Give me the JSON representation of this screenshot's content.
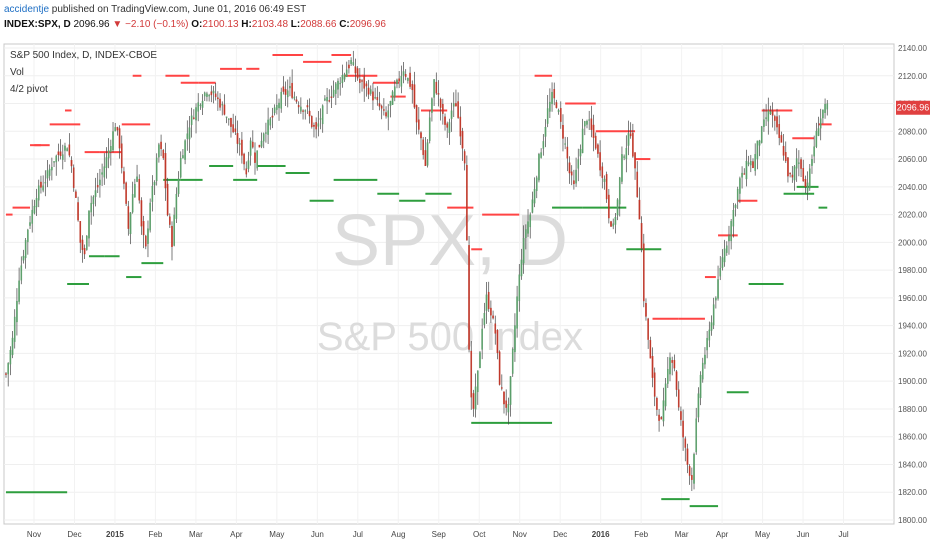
{
  "publish": {
    "author": "accidentje",
    "text": " published on TradingView.com, June 01, 2016 06:49 EST"
  },
  "ticker": {
    "symbol": "INDEX:SPX, D",
    "last": "2096.96",
    "change": "−2.10 (−0.1%)",
    "o_label": "O:",
    "o": "2100.13",
    "h_label": "H:",
    "h": "2103.48",
    "l_label": "L:",
    "l": "2088.66",
    "c_label": "C:",
    "c": "2096.96",
    "down_arrow": "▼"
  },
  "legend": {
    "title": "S&P 500 Index, D, INDEX-CBOE",
    "vol": "Vol",
    "pivot": "4/2 pivot"
  },
  "watermark": {
    "symbol": "SPX, D",
    "name": "S&P 500 Index"
  },
  "last_price_tag": "2096.96",
  "colors": {
    "up": "#5b9e6a",
    "down": "#c0392b",
    "wick": "#333333",
    "pivot_high": "#ff4444",
    "pivot_low": "#2e9e3e",
    "price_tag": "#e04040"
  },
  "chart_data": {
    "type": "candlestick",
    "y_axis": {
      "min": 1800,
      "max": 2140,
      "step": 20,
      "ticks": [
        "2140.00",
        "2120.00",
        "2100.00",
        "2080.00",
        "2060.00",
        "2040.00",
        "2020.00",
        "2000.00",
        "1980.00",
        "1960.00",
        "1940.00",
        "1920.00",
        "1900.00",
        "1880.00",
        "1860.00",
        "1840.00",
        "1820.00",
        "1800.00"
      ]
    },
    "x_axis": {
      "labels": [
        "Nov",
        "Dec",
        "2015",
        "Feb",
        "Mar",
        "Apr",
        "May",
        "Jun",
        "Jul",
        "Aug",
        "Sep",
        "Oct",
        "Nov",
        "Dec",
        "2016",
        "Feb",
        "Mar",
        "Apr",
        "May",
        "Jun",
        "Jul"
      ],
      "bold": [
        "2015",
        "2016"
      ]
    },
    "close_path": [
      [
        0,
        1905
      ],
      [
        3,
        1930
      ],
      [
        6,
        1975
      ],
      [
        10,
        2010
      ],
      [
        14,
        2035
      ],
      [
        18,
        2045
      ],
      [
        22,
        2060
      ],
      [
        25,
        2065
      ],
      [
        28,
        2070
      ],
      [
        30,
        2055
      ],
      [
        32,
        2030
      ],
      [
        34,
        2000
      ],
      [
        36,
        1990
      ],
      [
        38,
        2025
      ],
      [
        42,
        2040
      ],
      [
        46,
        2060
      ],
      [
        50,
        2085
      ],
      [
        52,
        2070
      ],
      [
        54,
        2040
      ],
      [
        56,
        2010
      ],
      [
        58,
        2035
      ],
      [
        60,
        2050
      ],
      [
        62,
        2010
      ],
      [
        64,
        1995
      ],
      [
        66,
        2030
      ],
      [
        68,
        2045
      ],
      [
        70,
        2070
      ],
      [
        72,
        2060
      ],
      [
        74,
        2020
      ],
      [
        76,
        2000
      ],
      [
        78,
        2035
      ],
      [
        80,
        2060
      ],
      [
        84,
        2085
      ],
      [
        88,
        2100
      ],
      [
        92,
        2110
      ],
      [
        96,
        2105
      ],
      [
        100,
        2095
      ],
      [
        104,
        2080
      ],
      [
        108,
        2065
      ],
      [
        110,
        2050
      ],
      [
        112,
        2075
      ],
      [
        114,
        2060
      ],
      [
        118,
        2080
      ],
      [
        122,
        2090
      ],
      [
        126,
        2105
      ],
      [
        130,
        2110
      ],
      [
        134,
        2100
      ],
      [
        138,
        2095
      ],
      [
        140,
        2085
      ],
      [
        142,
        2080
      ],
      [
        146,
        2100
      ],
      [
        150,
        2110
      ],
      [
        154,
        2120
      ],
      [
        158,
        2130
      ],
      [
        162,
        2115
      ],
      [
        166,
        2110
      ],
      [
        170,
        2100
      ],
      [
        174,
        2090
      ],
      [
        178,
        2110
      ],
      [
        182,
        2125
      ],
      [
        186,
        2110
      ],
      [
        188,
        2085
      ],
      [
        190,
        2075
      ],
      [
        192,
        2055
      ],
      [
        194,
        2090
      ],
      [
        196,
        2115
      ],
      [
        198,
        2105
      ],
      [
        200,
        2090
      ],
      [
        202,
        2080
      ],
      [
        204,
        2095
      ],
      [
        206,
        2100
      ],
      [
        208,
        2080
      ],
      [
        210,
        2060
      ],
      [
        211,
        2005
      ],
      [
        212,
        1920
      ],
      [
        213,
        1885
      ],
      [
        214,
        1880
      ],
      [
        216,
        1905
      ],
      [
        218,
        1940
      ],
      [
        220,
        1960
      ],
      [
        222,
        1950
      ],
      [
        224,
        1935
      ],
      [
        226,
        1900
      ],
      [
        228,
        1885
      ],
      [
        230,
        1880
      ],
      [
        232,
        1920
      ],
      [
        234,
        1960
      ],
      [
        236,
        1990
      ],
      [
        238,
        2010
      ],
      [
        240,
        2020
      ],
      [
        242,
        2040
      ],
      [
        244,
        2060
      ],
      [
        246,
        2075
      ],
      [
        248,
        2095
      ],
      [
        250,
        2105
      ],
      [
        252,
        2100
      ],
      [
        254,
        2085
      ],
      [
        256,
        2070
      ],
      [
        258,
        2050
      ],
      [
        260,
        2040
      ],
      [
        262,
        2060
      ],
      [
        264,
        2080
      ],
      [
        266,
        2090
      ],
      [
        268,
        2080
      ],
      [
        270,
        2070
      ],
      [
        272,
        2055
      ],
      [
        274,
        2045
      ],
      [
        276,
        2020
      ],
      [
        278,
        2010
      ],
      [
        280,
        2030
      ],
      [
        282,
        2060
      ],
      [
        284,
        2070
      ],
      [
        286,
        2080
      ],
      [
        288,
        2050
      ],
      [
        290,
        2020
      ],
      [
        291,
        1995
      ],
      [
        292,
        1960
      ],
      [
        294,
        1930
      ],
      [
        296,
        1900
      ],
      [
        298,
        1880
      ],
      [
        300,
        1870
      ],
      [
        302,
        1895
      ],
      [
        304,
        1920
      ],
      [
        306,
        1910
      ],
      [
        308,
        1880
      ],
      [
        310,
        1860
      ],
      [
        312,
        1840
      ],
      [
        314,
        1830
      ],
      [
        316,
        1870
      ],
      [
        318,
        1905
      ],
      [
        320,
        1920
      ],
      [
        322,
        1935
      ],
      [
        324,
        1955
      ],
      [
        326,
        1970
      ],
      [
        328,
        1990
      ],
      [
        330,
        2000
      ],
      [
        332,
        2015
      ],
      [
        334,
        2030
      ],
      [
        336,
        2045
      ],
      [
        338,
        2050
      ],
      [
        340,
        2060
      ],
      [
        342,
        2055
      ],
      [
        344,
        2070
      ],
      [
        346,
        2080
      ],
      [
        348,
        2090
      ],
      [
        350,
        2095
      ],
      [
        352,
        2085
      ],
      [
        354,
        2075
      ],
      [
        356,
        2065
      ],
      [
        358,
        2050
      ],
      [
        360,
        2045
      ],
      [
        362,
        2060
      ],
      [
        364,
        2055
      ],
      [
        366,
        2040
      ],
      [
        368,
        2050
      ],
      [
        370,
        2070
      ],
      [
        372,
        2085
      ],
      [
        374,
        2095
      ],
      [
        376,
        2097
      ]
    ],
    "pivots_high": [
      [
        0,
        3,
        2020
      ],
      [
        3,
        11,
        2025
      ],
      [
        11,
        16,
        2070
      ],
      [
        13,
        20,
        2070
      ],
      [
        20,
        34,
        2085
      ],
      [
        27,
        30,
        2095
      ],
      [
        36,
        43,
        2065
      ],
      [
        43,
        53,
        2065
      ],
      [
        53,
        66,
        2085
      ],
      [
        58,
        62,
        2120
      ],
      [
        73,
        84,
        2120
      ],
      [
        80,
        88,
        2115
      ],
      [
        88,
        96,
        2115
      ],
      [
        98,
        108,
        2125
      ],
      [
        110,
        116,
        2125
      ],
      [
        122,
        136,
        2135
      ],
      [
        136,
        149,
        2130
      ],
      [
        149,
        158,
        2135
      ],
      [
        155,
        164,
        2120
      ],
      [
        163,
        170,
        2120
      ],
      [
        168,
        180,
        2115
      ],
      [
        176,
        183,
        2105
      ],
      [
        190,
        202,
        2095
      ],
      [
        202,
        214,
        2025
      ],
      [
        218,
        235,
        2020
      ],
      [
        213,
        218,
        1995
      ],
      [
        242,
        250,
        2120
      ],
      [
        256,
        270,
        2100
      ],
      [
        270,
        288,
        2080
      ],
      [
        288,
        295,
        2060
      ],
      [
        296,
        308,
        1945
      ],
      [
        308,
        320,
        1945
      ],
      [
        320,
        325,
        1975
      ],
      [
        326,
        335,
        2005
      ],
      [
        335,
        344,
        2030
      ],
      [
        346,
        360,
        2095
      ],
      [
        360,
        370,
        2075
      ],
      [
        372,
        378,
        2085
      ]
    ],
    "pivots_low": [
      [
        0,
        28,
        1820
      ],
      [
        28,
        38,
        1970
      ],
      [
        38,
        45,
        1990
      ],
      [
        45,
        52,
        1990
      ],
      [
        55,
        62,
        1975
      ],
      [
        62,
        72,
        1985
      ],
      [
        72,
        80,
        2045
      ],
      [
        80,
        90,
        2045
      ],
      [
        93,
        104,
        2055
      ],
      [
        104,
        115,
        2045
      ],
      [
        115,
        128,
        2055
      ],
      [
        128,
        139,
        2050
      ],
      [
        139,
        150,
        2030
      ],
      [
        150,
        160,
        2045
      ],
      [
        160,
        170,
        2045
      ],
      [
        170,
        180,
        2035
      ],
      [
        180,
        192,
        2030
      ],
      [
        192,
        204,
        2035
      ],
      [
        213,
        228,
        1870
      ],
      [
        228,
        250,
        1870
      ],
      [
        250,
        264,
        2025
      ],
      [
        264,
        284,
        2025
      ],
      [
        284,
        300,
        1995
      ],
      [
        300,
        313,
        1815
      ],
      [
        313,
        326,
        1810
      ],
      [
        330,
        340,
        1892
      ],
      [
        340,
        356,
        1970
      ],
      [
        356,
        370,
        2035
      ],
      [
        362,
        372,
        2040
      ],
      [
        372,
        376,
        2025
      ]
    ]
  }
}
